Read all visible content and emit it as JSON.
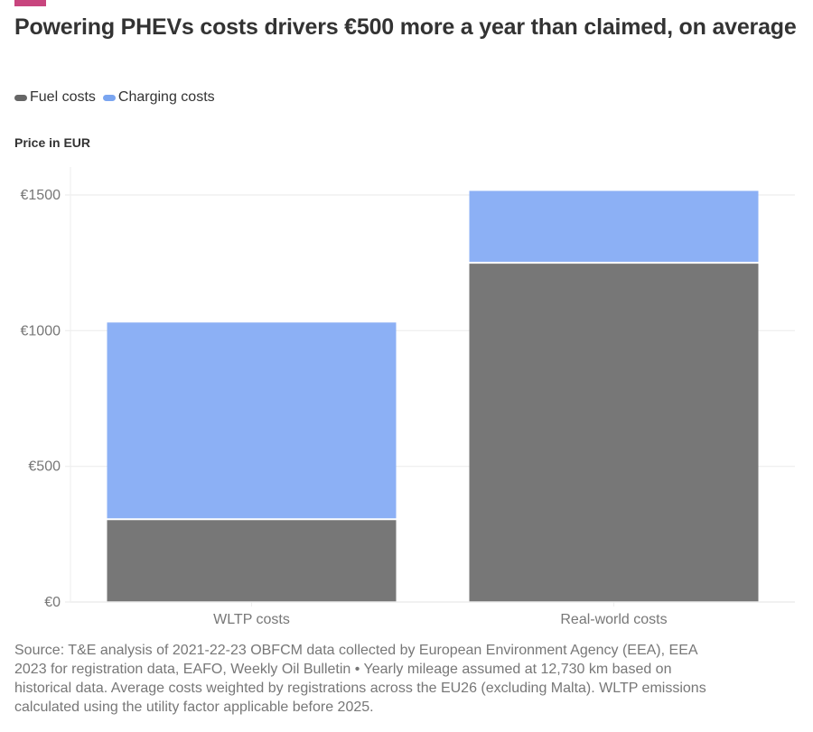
{
  "header": {
    "title": "Powering PHEVs costs drivers €500 more a year than claimed, on average",
    "accent_color": "#c8457e"
  },
  "legend": [
    {
      "label": "Fuel costs",
      "color": "#777777"
    },
    {
      "label": "Charging costs",
      "color": "#8cb0f5"
    }
  ],
  "chart_data": {
    "type": "bar",
    "stacked": true,
    "title": "Powering PHEVs costs drivers €500 more a year than claimed, on average",
    "ylabel": "Price in EUR",
    "xlabel": "",
    "categories": [
      "WLTP costs",
      "Real-world costs"
    ],
    "series": [
      {
        "name": "Fuel costs",
        "values": [
          305,
          1250
        ],
        "color": "#777777"
      },
      {
        "name": "Charging costs",
        "values": [
          725,
          265
        ],
        "color": "#8cb0f5"
      }
    ],
    "ylim": [
      0,
      1500
    ],
    "yticks": [
      0,
      500,
      1000,
      1500
    ],
    "ytick_labels": [
      "€0",
      "€500",
      "€1000",
      "€1500"
    ],
    "grid": true,
    "legend_position": "top-left"
  },
  "footer": {
    "source": "Source: T&E analysis of 2021-22-23 OBFCM data collected by European Environment Agency (EEA), EEA 2023 for registration data, EAFO, Weekly Oil Bulletin • Yearly mileage assumed at 12,730 km based on historical data. Average costs weighted by registrations across the EU26 (excluding Malta). WLTP emissions calculated using the utility factor applicable before 2025."
  }
}
